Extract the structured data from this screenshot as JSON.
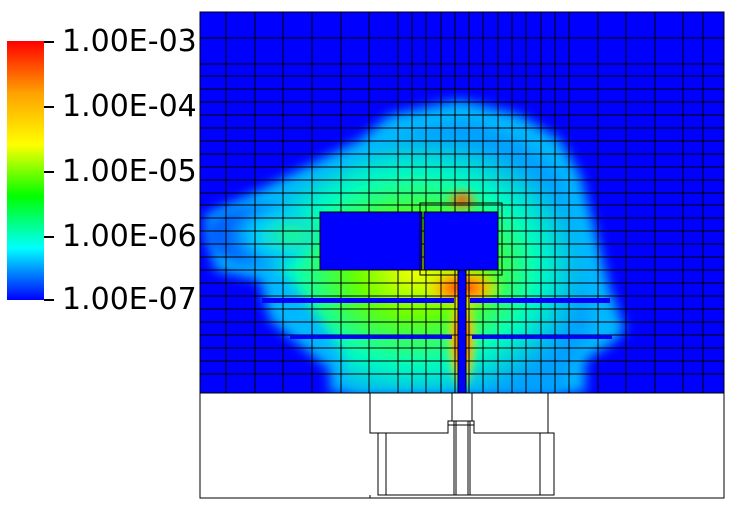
{
  "colorbar": {
    "scale": "log",
    "colormap": "rainbow (blue to red)",
    "labels": [
      "1.00E-03",
      "1.00E-04",
      "1.00E-05",
      "1.00E-06",
      "1.00E-07"
    ],
    "colors": [
      "#ff0000",
      "#ffa000",
      "#ffff00",
      "#00ff00",
      "#00ffff",
      "#0000ff"
    ]
  },
  "plot": {
    "background_color": "#0000ff",
    "grid": true,
    "mesh_line_color": "#000000"
  }
}
